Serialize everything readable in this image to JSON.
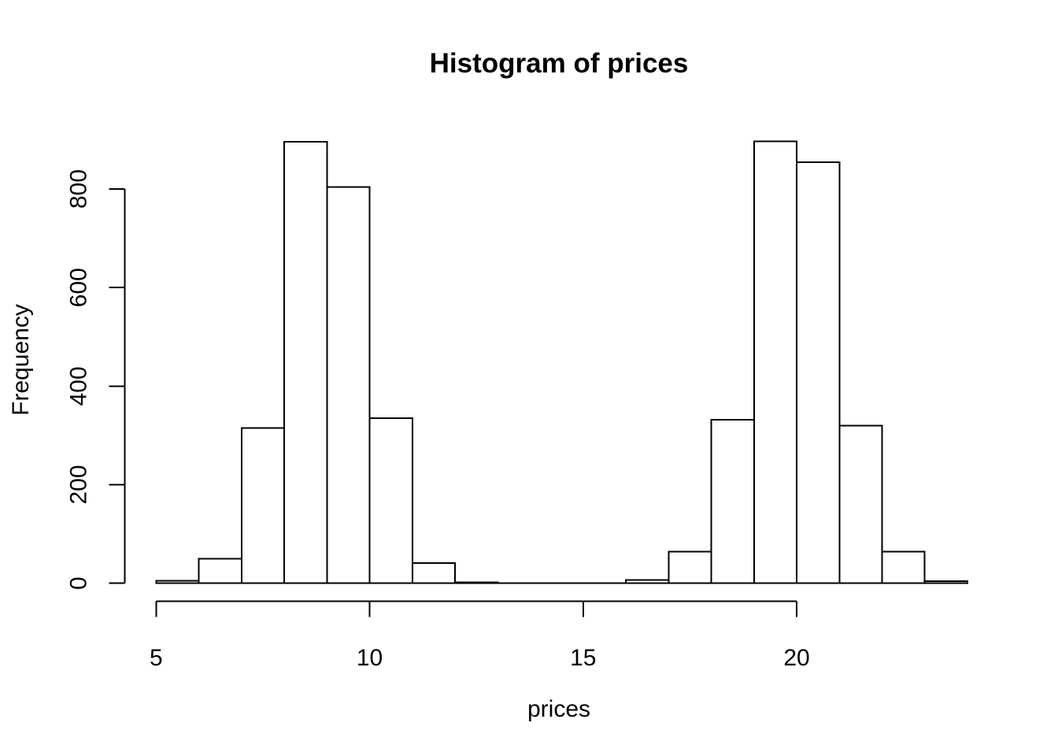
{
  "chart_data": {
    "type": "bar",
    "variant": "histogram",
    "title": "Histogram of prices",
    "xlabel": "prices",
    "ylabel": "Frequency",
    "bin_edges": [
      5,
      6,
      7,
      8,
      9,
      10,
      11,
      12,
      13,
      14,
      15,
      16,
      17,
      18,
      19,
      20,
      21,
      22,
      23,
      24
    ],
    "counts": [
      5,
      50,
      315,
      896,
      804,
      335,
      41,
      2,
      0,
      0,
      0,
      7,
      64,
      332,
      897,
      854,
      320,
      64,
      4
    ],
    "x_ticks": [
      5,
      10,
      15,
      20
    ],
    "y_ticks": [
      0,
      200,
      400,
      600,
      800
    ],
    "xlim": [
      5,
      24
    ],
    "ylim": [
      0,
      800
    ],
    "grid": false,
    "legend": null,
    "colors": {
      "background": "#ffffff",
      "bar_fill": "#ffffff",
      "bar_stroke": "#000000",
      "axis": "#000000",
      "text": "#000000"
    }
  }
}
